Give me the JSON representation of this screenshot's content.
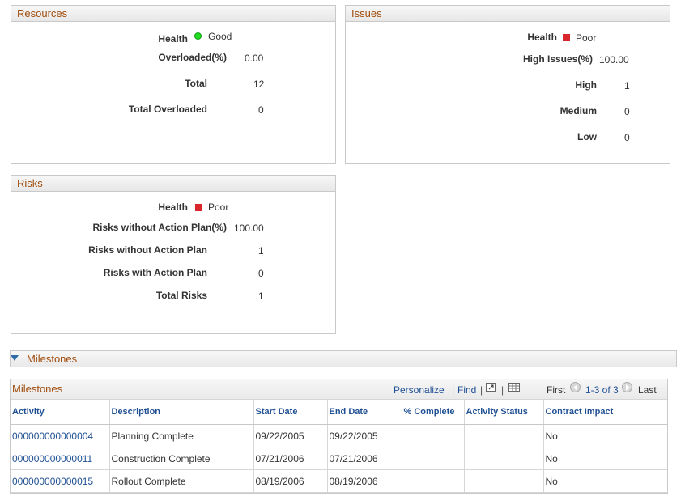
{
  "resources": {
    "title": "Resources",
    "health_label": "Health",
    "health_value": "Good",
    "overloaded_pct_label": "Overloaded(%)",
    "overloaded_pct_value": "0.00",
    "total_label": "Total",
    "total_value": "12",
    "total_overloaded_label": "Total Overloaded",
    "total_overloaded_value": "0"
  },
  "issues": {
    "title": "Issues",
    "health_label": "Health",
    "health_value": "Poor",
    "high_issues_pct_label": "High Issues(%)",
    "high_issues_pct_value": "100.00",
    "high_label": "High",
    "high_value": "1",
    "medium_label": "Medium",
    "medium_value": "0",
    "low_label": "Low",
    "low_value": "0"
  },
  "risks": {
    "title": "Risks",
    "health_label": "Health",
    "health_value": "Poor",
    "without_plan_pct_label": "Risks without Action Plan(%)",
    "without_plan_pct_value": "100.00",
    "without_plan_label": "Risks without Action Plan",
    "without_plan_value": "1",
    "with_plan_label": "Risks with Action Plan",
    "with_plan_value": "0",
    "total_label": "Total Risks",
    "total_value": "1"
  },
  "milestones_section": {
    "title": "Milestones"
  },
  "milestones_grid": {
    "title": "Milestones",
    "personalize": "Personalize",
    "find": "Find",
    "first": "First",
    "range": "1-3 of 3",
    "last": "Last",
    "columns": [
      "Activity",
      "Description",
      "Start Date",
      "End Date",
      "% Complete",
      "Activity Status",
      "Contract Impact"
    ],
    "rows": [
      [
        "000000000000004",
        "Planning Complete",
        "09/22/2005",
        "09/22/2005",
        "",
        "",
        "No"
      ],
      [
        "000000000000011",
        "Construction Complete",
        "07/21/2006",
        "07/21/2006",
        "",
        "",
        "No"
      ],
      [
        "000000000000015",
        "Rollout Complete",
        "08/19/2006",
        "08/19/2006",
        "",
        "",
        "No"
      ]
    ]
  },
  "colors": {
    "header_text": "#a04e0f",
    "link": "#1f4f93",
    "good": "#22dd22",
    "poor": "#d9262c"
  },
  "icons": [
    "status-good-icon",
    "status-poor-icon",
    "collapse-triangle-icon",
    "new-window-icon",
    "download-grid-icon",
    "previous-arrow-icon",
    "next-arrow-icon"
  ]
}
